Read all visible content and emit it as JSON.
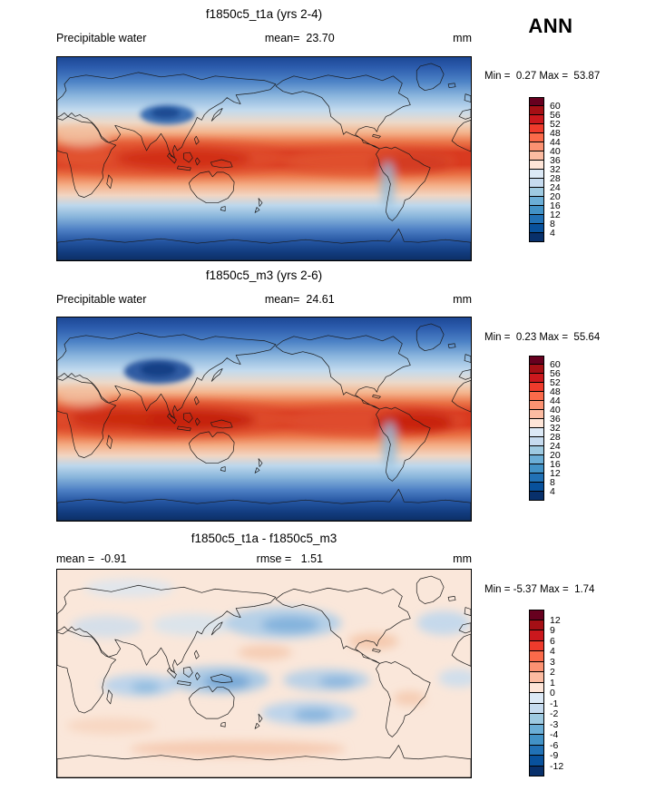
{
  "page": {
    "season": "ANN",
    "background_color": "#ffffff"
  },
  "panels": [
    {
      "title": "f1850c5_t1a (yrs 2-4)",
      "variable_label": "Precipitable water",
      "mean_label": "mean=  23.70",
      "units": "mm",
      "minmax_label": "Min =  0.27 Max =  53.87",
      "colorbar": {
        "ticks": [
          "60",
          "56",
          "52",
          "48",
          "44",
          "40",
          "36",
          "32",
          "28",
          "24",
          "20",
          "16",
          "12",
          "8",
          "4"
        ],
        "colors": [
          "#67001f",
          "#a50f15",
          "#cb181d",
          "#ef3b2c",
          "#fb6a4a",
          "#fc9272",
          "#fcbba1",
          "#fee5d8",
          "#dce9f6",
          "#c6dbef",
          "#9ecae1",
          "#6baed6",
          "#4292c6",
          "#2171b5",
          "#08519c",
          "#08306b"
        ]
      }
    },
    {
      "title": "f1850c5_m3 (yrs 2-6)",
      "variable_label": "Precipitable water",
      "mean_label": "mean=  24.61",
      "units": "mm",
      "minmax_label": "Min =  0.23 Max =  55.64",
      "colorbar": {
        "ticks": [
          "60",
          "56",
          "52",
          "48",
          "44",
          "40",
          "36",
          "32",
          "28",
          "24",
          "20",
          "16",
          "12",
          "8",
          "4"
        ],
        "colors": [
          "#67001f",
          "#a50f15",
          "#cb181d",
          "#ef3b2c",
          "#fb6a4a",
          "#fc9272",
          "#fcbba1",
          "#fee5d8",
          "#dce9f6",
          "#c6dbef",
          "#9ecae1",
          "#6baed6",
          "#4292c6",
          "#2171b5",
          "#08519c",
          "#08306b"
        ]
      }
    },
    {
      "title": "f1850c5_t1a - f1850c5_m3",
      "mean_label": "mean =  -0.91",
      "rmse_label": "rmse =   1.51",
      "units": "mm",
      "minmax_label": "Min = -5.37 Max =  1.74",
      "colorbar": {
        "ticks": [
          "12",
          "9",
          "6",
          "4",
          "3",
          "2",
          "1",
          "0",
          "-1",
          "-2",
          "-3",
          "-4",
          "-6",
          "-9",
          "-12"
        ],
        "colors": [
          "#67001f",
          "#a50f15",
          "#cb181d",
          "#ef3b2c",
          "#fb6a4a",
          "#fc9272",
          "#fcbba1",
          "#fee5d8",
          "#dce9f6",
          "#c6dbef",
          "#9ecae1",
          "#6baed6",
          "#4292c6",
          "#2171b5",
          "#08519c",
          "#08306b"
        ]
      }
    }
  ],
  "chart_data": [
    {
      "type": "heatmap",
      "subtype": "global-filled-contour-map",
      "title": "f1850c5_t1a (yrs 2-4)",
      "variable": "Precipitable water",
      "units": "mm",
      "season": "ANN",
      "stats": {
        "mean": 23.7,
        "min": 0.27,
        "max": 53.87
      },
      "contour_levels": [
        4,
        8,
        12,
        16,
        20,
        24,
        28,
        32,
        36,
        40,
        44,
        48,
        52,
        56,
        60
      ],
      "palette_top_to_bottom": [
        "#67001f",
        "#a50f15",
        "#cb181d",
        "#ef3b2c",
        "#fb6a4a",
        "#fc9272",
        "#fcbba1",
        "#fee5d8",
        "#dce9f6",
        "#c6dbef",
        "#9ecae1",
        "#6baed6",
        "#4292c6",
        "#2171b5",
        "#08519c",
        "#08306b"
      ],
      "projection": "cylindrical equidistant, longitudes 0-360E, latitudes 90N-90S",
      "spatial_pattern": "Red band (>44 mm) along the tropics with maxima over the Indian Ocean, west Pacific warm pool and Amazon; values decrease poleward through 20-30 mm midlatitude blues to <4 mm (dark navy) over the poles, Tibetan Plateau and Antarctica"
    },
    {
      "type": "heatmap",
      "subtype": "global-filled-contour-map",
      "title": "f1850c5_m3 (yrs 2-6)",
      "variable": "Precipitable water",
      "units": "mm",
      "season": "ANN",
      "stats": {
        "mean": 24.61,
        "min": 0.23,
        "max": 55.64
      },
      "contour_levels": [
        4,
        8,
        12,
        16,
        20,
        24,
        28,
        32,
        36,
        40,
        44,
        48,
        52,
        56,
        60
      ],
      "palette_top_to_bottom": [
        "#67001f",
        "#a50f15",
        "#cb181d",
        "#ef3b2c",
        "#fb6a4a",
        "#fc9272",
        "#fcbba1",
        "#fee5d8",
        "#dce9f6",
        "#c6dbef",
        "#9ecae1",
        "#6baed6",
        "#4292c6",
        "#2171b5",
        "#08519c",
        "#08306b"
      ],
      "projection": "cylindrical equidistant, longitudes 0-360E, latitudes 90N-90S",
      "spatial_pattern": "Same zonal structure as panel 1 but with stronger/darker tropical maxima (deeper reds over equatorial Africa, Indian Ocean, west Pacific and South America) and a larger dry (dark blue) patch over the Tibetan Plateau"
    },
    {
      "type": "heatmap",
      "subtype": "global-difference-map",
      "title": "f1850c5_t1a - f1850c5_m3",
      "units": "mm",
      "season": "ANN",
      "stats": {
        "mean": -0.91,
        "rmse": 1.51,
        "min": -5.37,
        "max": 1.74
      },
      "contour_levels": [
        -12,
        -9,
        -6,
        -4,
        -3,
        -2,
        -1,
        0,
        1,
        2,
        3,
        4,
        6,
        9,
        12
      ],
      "palette_top_to_bottom": [
        "#67001f",
        "#a50f15",
        "#cb181d",
        "#ef3b2c",
        "#fb6a4a",
        "#fc9272",
        "#fcbba1",
        "#fee5d8",
        "#dce9f6",
        "#c6dbef",
        "#9ecae1",
        "#6baed6",
        "#4292c6",
        "#2171b5",
        "#08519c",
        "#08306b"
      ],
      "projection": "cylindrical equidistant, longitudes 0-360E, latitudes 90N-90S",
      "spatial_pattern": "Mostly weak differences near zero (pale cream); blue negative patches (-2 to -4 mm) over the North Pacific, tropical Indian Ocean, equatorial and South Pacific and North Atlantic; faint positive (pale pink) areas in the subtropics and near the Southern Ocean"
    }
  ]
}
